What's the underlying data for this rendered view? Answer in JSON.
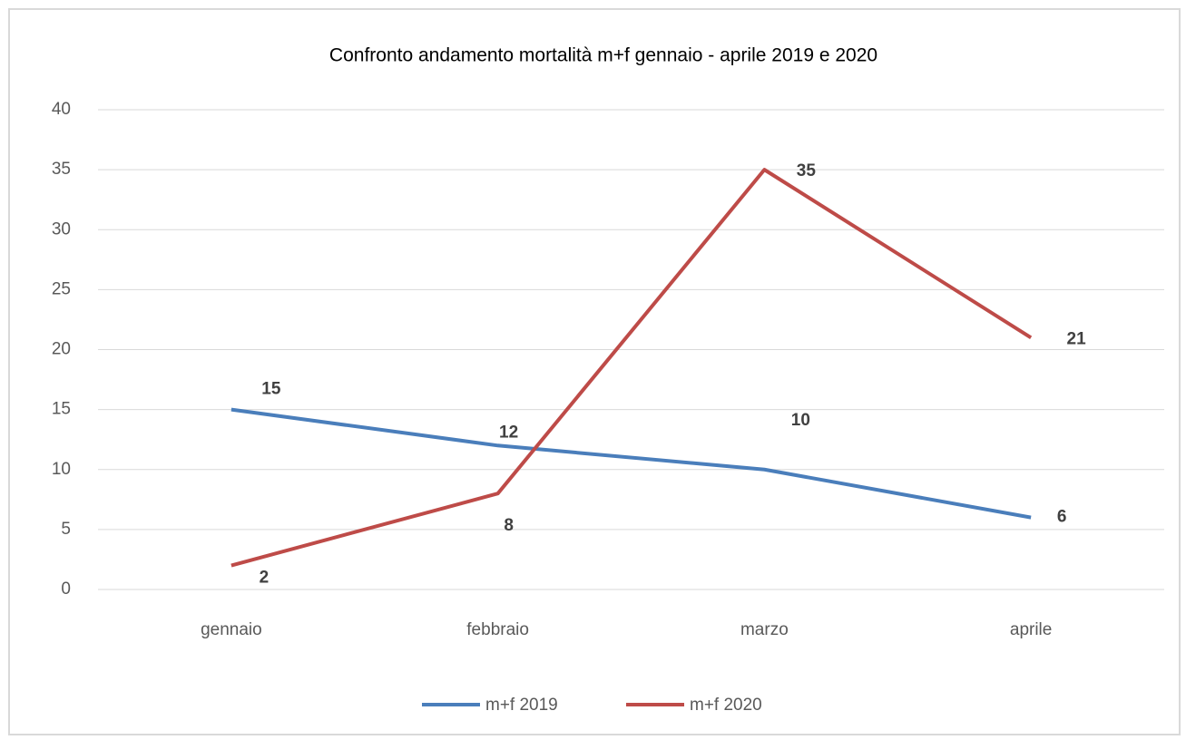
{
  "chart_data": {
    "type": "line",
    "title": "Confronto andamento mortalità m+f gennaio - aprile 2019 e 2020",
    "categories": [
      "gennaio",
      "febbraio",
      "marzo",
      "aprile"
    ],
    "series": [
      {
        "name": "m+f 2019",
        "color": "#4a7ebb",
        "values": [
          15,
          12,
          10,
          6
        ]
      },
      {
        "name": "m+f 2020",
        "color": "#be4b48",
        "values": [
          2,
          8,
          35,
          21
        ]
      }
    ],
    "ylim": [
      0,
      40
    ],
    "yticks": [
      0,
      5,
      10,
      15,
      20,
      25,
      30,
      35,
      40
    ],
    "grid": true,
    "legend": "bottom"
  }
}
